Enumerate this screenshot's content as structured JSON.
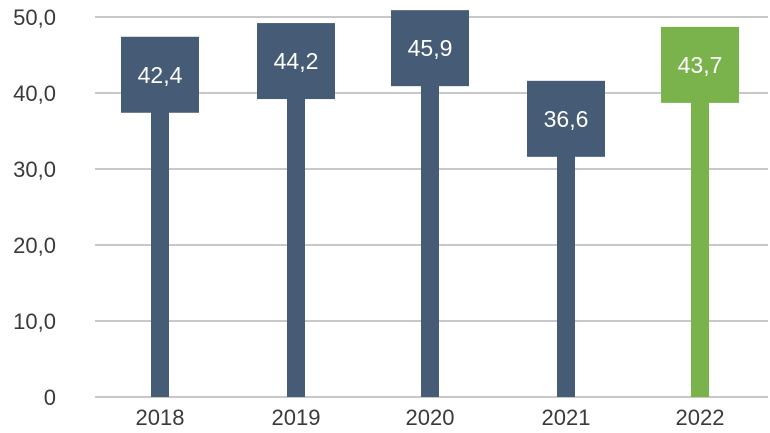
{
  "chart_data": {
    "type": "bar",
    "categories": [
      "2018",
      "2019",
      "2020",
      "2021",
      "2022"
    ],
    "values": [
      42.4,
      44.2,
      45.9,
      36.6,
      43.7
    ],
    "value_labels": [
      "42,4",
      "44,2",
      "45,9",
      "36,6",
      "43,7"
    ],
    "y_ticks": [
      "0",
      "10,0",
      "20,0",
      "30,0",
      "40,0",
      "50,0"
    ],
    "y_tick_values": [
      0,
      10,
      20,
      30,
      40,
      50
    ],
    "ylim": [
      0,
      50
    ],
    "grid": true,
    "legend": "none",
    "colors": {
      "default": "#465b76",
      "highlight": "#7ab34c",
      "grid": "#c8c8c8"
    },
    "highlight_index": 4
  }
}
